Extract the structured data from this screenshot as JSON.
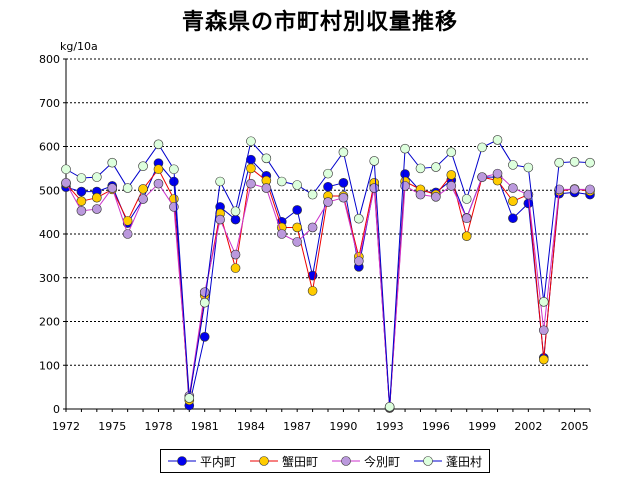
{
  "chart_data": {
    "type": "line",
    "title": "青森県の市町村別収量推移",
    "ylabel": "kg/10a",
    "xlabel": "",
    "ylim": [
      0,
      800
    ],
    "xlim": [
      1972,
      2006
    ],
    "yticks": [
      0,
      100,
      200,
      300,
      400,
      500,
      600,
      700,
      800
    ],
    "xticks": [
      1972,
      1975,
      1978,
      1981,
      1984,
      1987,
      1990,
      1993,
      1996,
      1999,
      2002,
      2005
    ],
    "x": [
      1972,
      1973,
      1974,
      1975,
      1976,
      1977,
      1978,
      1979,
      1980,
      1981,
      1982,
      1983,
      1984,
      1985,
      1986,
      1987,
      1988,
      1989,
      1990,
      1991,
      1992,
      1993,
      1994,
      1995,
      1996,
      1997,
      1998,
      1999,
      2000,
      2001,
      2002,
      2003,
      2004,
      2005,
      2006
    ],
    "series": [
      {
        "name": "平内町",
        "line_color": "#0000cc",
        "marker_color": "#0000ee",
        "values": [
          507,
          497,
          497,
          510,
          425,
          480,
          562,
          520,
          8,
          165,
          462,
          433,
          570,
          533,
          428,
          455,
          305,
          508,
          517,
          325,
          510,
          3,
          537,
          498,
          495,
          523,
          437,
          530,
          530,
          436,
          470,
          117,
          492,
          495,
          490
        ]
      },
      {
        "name": "蟹田町",
        "line_color": "#ee0000",
        "marker_color": "#ffcc00",
        "values": [
          515,
          475,
          483,
          502,
          430,
          503,
          548,
          480,
          20,
          260,
          447,
          322,
          550,
          522,
          415,
          415,
          270,
          487,
          487,
          348,
          517,
          2,
          520,
          502,
          490,
          535,
          395,
          530,
          522,
          475,
          490,
          113,
          498,
          503,
          498
        ]
      },
      {
        "name": "今別町",
        "line_color": "#cc33cc",
        "marker_color": "#bb99dd",
        "values": [
          517,
          453,
          457,
          505,
          400,
          480,
          515,
          462,
          30,
          267,
          433,
          353,
          515,
          505,
          400,
          382,
          415,
          473,
          483,
          338,
          505,
          3,
          510,
          490,
          485,
          510,
          436,
          530,
          538,
          505,
          490,
          180,
          502,
          502,
          502
        ]
      },
      {
        "name": "蓬田村",
        "line_color": "#0000cc",
        "marker_color": "#ddffdd",
        "values": [
          548,
          528,
          530,
          563,
          505,
          555,
          605,
          548,
          25,
          243,
          520,
          452,
          612,
          573,
          520,
          512,
          490,
          538,
          587,
          435,
          567,
          5,
          595,
          550,
          553,
          587,
          480,
          598,
          615,
          558,
          552,
          245,
          563,
          565,
          563
        ]
      }
    ]
  }
}
